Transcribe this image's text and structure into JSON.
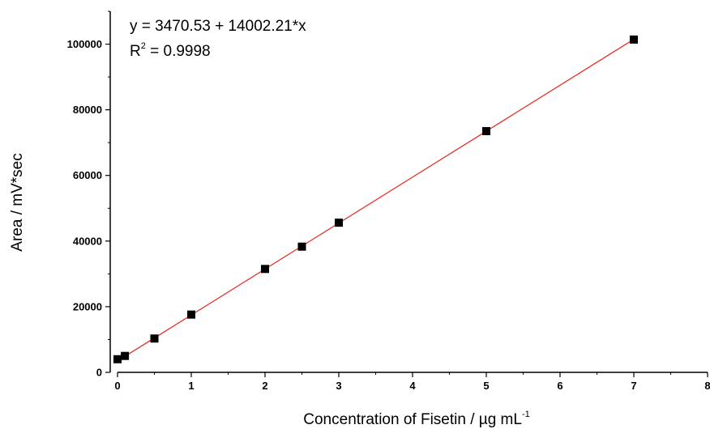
{
  "chart_data": {
    "type": "scatter",
    "xlabel": "Concentration of Fisetin  / µg mL",
    "xlabel_sup": "-1",
    "ylabel": "Area / mV*sec",
    "xlim": [
      0,
      8
    ],
    "ylim": [
      0,
      110000
    ],
    "x_ticks": [
      "0",
      "1",
      "2",
      "3",
      "4",
      "5",
      "6",
      "7",
      "8"
    ],
    "y_ticks": [
      "0",
      "20000",
      "40000",
      "60000",
      "80000",
      "100000"
    ],
    "grid": false,
    "series": [
      {
        "marker": "square",
        "color": "#000000",
        "points": [
          {
            "x": 0,
            "y": 4000
          },
          {
            "x": 0.1,
            "y": 5000
          },
          {
            "x": 0.5,
            "y": 10300
          },
          {
            "x": 1,
            "y": 17600
          },
          {
            "x": 2,
            "y": 31500
          },
          {
            "x": 2.5,
            "y": 38300
          },
          {
            "x": 3,
            "y": 45600
          },
          {
            "x": 5,
            "y": 73500
          },
          {
            "x": 7,
            "y": 101400
          }
        ]
      }
    ],
    "fit_line": {
      "intercept": 3470.53,
      "slope": 14002.21,
      "color": "#e8231c"
    },
    "annotations": {
      "equation": "y = 3470.53 + 14002.21*x",
      "r2_prefix": "R",
      "r2_sup": "2",
      "r2_value": " = 0.9998"
    }
  }
}
